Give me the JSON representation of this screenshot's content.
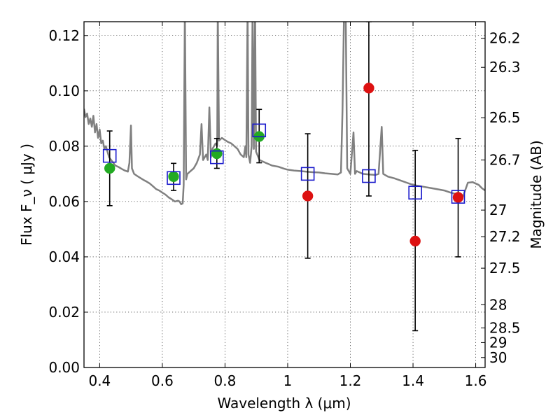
{
  "chart_data": {
    "type": "scatter",
    "xlabel": "Wavelength  λ (μm)",
    "ylabel": "Flux  F_ν  ( μJy )",
    "ylabel_right": "Magnitude (AB)",
    "xlim": [
      0.35,
      1.63
    ],
    "ylim": [
      0.0,
      0.125
    ],
    "grid": true,
    "x_ticks": [
      0.4,
      0.6,
      0.8,
      1.0,
      1.2,
      1.4,
      1.6
    ],
    "x_tick_labels": [
      "0.4",
      "0.6",
      "0.8",
      "1",
      "1.2",
      "1.4",
      "1.6"
    ],
    "y_ticks": [
      0.0,
      0.02,
      0.04,
      0.06,
      0.08,
      0.1,
      0.12
    ],
    "y_tick_labels": [
      "0.00",
      "0.02",
      "0.04",
      "0.06",
      "0.08",
      "0.10",
      "0.12"
    ],
    "right_ticks": [
      {
        "label": "26.2",
        "flux": 0.119
      },
      {
        "label": "26.3",
        "flux": 0.1085
      },
      {
        "label": "26.5",
        "flux": 0.0903
      },
      {
        "label": "26.7",
        "flux": 0.075
      },
      {
        "label": "27",
        "flux": 0.0569
      },
      {
        "label": "27.2",
        "flux": 0.0473
      },
      {
        "label": "27.5",
        "flux": 0.0359
      },
      {
        "label": "28",
        "flux": 0.0227
      },
      {
        "label": "28.5",
        "flux": 0.0143
      },
      {
        "label": "29",
        "flux": 0.009
      },
      {
        "label": "30",
        "flux": 0.0036
      }
    ],
    "series": [
      {
        "marker": "circle",
        "color": "#22aa22",
        "points": [
          {
            "x": 0.432,
            "y": 0.072
          },
          {
            "x": 0.636,
            "y": 0.069
          },
          {
            "x": 0.774,
            "y": 0.0773
          },
          {
            "x": 0.909,
            "y": 0.0835
          }
        ]
      },
      {
        "marker": "circle",
        "color": "#dd1111",
        "points": [
          {
            "x": 1.064,
            "y": 0.062
          },
          {
            "x": 1.259,
            "y": 0.101
          },
          {
            "x": 1.407,
            "y": 0.0457
          },
          {
            "x": 1.544,
            "y": 0.0615
          }
        ]
      },
      {
        "marker": "open-square",
        "color": "#1a1acc",
        "points": [
          {
            "x": 0.432,
            "y": 0.0765
          },
          {
            "x": 0.636,
            "y": 0.0685
          },
          {
            "x": 0.774,
            "y": 0.076
          },
          {
            "x": 0.909,
            "y": 0.0857
          },
          {
            "x": 1.064,
            "y": 0.07
          },
          {
            "x": 1.259,
            "y": 0.0692
          },
          {
            "x": 1.407,
            "y": 0.0632
          },
          {
            "x": 1.544,
            "y": 0.0617
          }
        ]
      }
    ],
    "error_bars": [
      {
        "x": 0.432,
        "lo": 0.0585,
        "hi": 0.0855
      },
      {
        "x": 0.636,
        "lo": 0.064,
        "hi": 0.0738
      },
      {
        "x": 0.774,
        "lo": 0.072,
        "hi": 0.0828
      },
      {
        "x": 0.909,
        "lo": 0.074,
        "hi": 0.0933
      },
      {
        "x": 1.064,
        "lo": 0.0395,
        "hi": 0.0845
      },
      {
        "x": 1.259,
        "lo": 0.062,
        "hi": 0.125
      },
      {
        "x": 1.407,
        "lo": 0.0133,
        "hi": 0.0785
      },
      {
        "x": 1.544,
        "lo": 0.04,
        "hi": 0.0828
      }
    ],
    "spectrum": {
      "color": "#808080",
      "points": [
        [
          0.35,
          0.0935
        ],
        [
          0.355,
          0.0905
        ],
        [
          0.36,
          0.0918
        ],
        [
          0.365,
          0.088
        ],
        [
          0.37,
          0.09
        ],
        [
          0.375,
          0.087
        ],
        [
          0.38,
          0.091
        ],
        [
          0.385,
          0.085
        ],
        [
          0.39,
          0.088
        ],
        [
          0.395,
          0.083
        ],
        [
          0.4,
          0.086
        ],
        [
          0.405,
          0.081
        ],
        [
          0.41,
          0.082
        ],
        [
          0.415,
          0.079
        ],
        [
          0.42,
          0.08
        ],
        [
          0.425,
          0.078
        ],
        [
          0.43,
          0.076
        ],
        [
          0.44,
          0.0745
        ],
        [
          0.45,
          0.073
        ],
        [
          0.46,
          0.0725
        ],
        [
          0.47,
          0.0718
        ],
        [
          0.48,
          0.0712
        ],
        [
          0.49,
          0.0708
        ],
        [
          0.495,
          0.074
        ],
        [
          0.5,
          0.0875
        ],
        [
          0.503,
          0.072
        ],
        [
          0.51,
          0.07
        ],
        [
          0.52,
          0.0692
        ],
        [
          0.53,
          0.0685
        ],
        [
          0.54,
          0.0678
        ],
        [
          0.55,
          0.0672
        ],
        [
          0.56,
          0.0665
        ],
        [
          0.57,
          0.0655
        ],
        [
          0.58,
          0.0645
        ],
        [
          0.59,
          0.064
        ],
        [
          0.6,
          0.0632
        ],
        [
          0.61,
          0.0625
        ],
        [
          0.62,
          0.0615
        ],
        [
          0.63,
          0.0608
        ],
        [
          0.64,
          0.06
        ],
        [
          0.65,
          0.0603
        ],
        [
          0.655,
          0.06
        ],
        [
          0.66,
          0.059
        ],
        [
          0.665,
          0.0593
        ],
        [
          0.668,
          0.066
        ],
        [
          0.672,
          0.13
        ],
        [
          0.676,
          0.068
        ],
        [
          0.68,
          0.07
        ],
        [
          0.69,
          0.071
        ],
        [
          0.7,
          0.072
        ],
        [
          0.71,
          0.074
        ],
        [
          0.72,
          0.077
        ],
        [
          0.725,
          0.088
        ],
        [
          0.73,
          0.075
        ],
        [
          0.74,
          0.077
        ],
        [
          0.745,
          0.075
        ],
        [
          0.75,
          0.094
        ],
        [
          0.755,
          0.076
        ],
        [
          0.76,
          0.079
        ],
        [
          0.77,
          0.081
        ],
        [
          0.775,
          0.08
        ],
        [
          0.777,
          0.13
        ],
        [
          0.781,
          0.082
        ],
        [
          0.79,
          0.083
        ],
        [
          0.8,
          0.0822
        ],
        [
          0.81,
          0.0815
        ],
        [
          0.82,
          0.081
        ],
        [
          0.83,
          0.08
        ],
        [
          0.84,
          0.079
        ],
        [
          0.85,
          0.077
        ],
        [
          0.86,
          0.076
        ],
        [
          0.865,
          0.08
        ],
        [
          0.868,
          0.076
        ],
        [
          0.872,
          0.13
        ],
        [
          0.875,
          0.077
        ],
        [
          0.88,
          0.074
        ],
        [
          0.885,
          0.08
        ],
        [
          0.888,
          0.13
        ],
        [
          0.892,
          0.079
        ],
        [
          0.896,
          0.13
        ],
        [
          0.899,
          0.078
        ],
        [
          0.91,
          0.075
        ],
        [
          0.92,
          0.0745
        ],
        [
          0.93,
          0.074
        ],
        [
          0.94,
          0.0735
        ],
        [
          0.95,
          0.073
        ],
        [
          0.96,
          0.0728
        ],
        [
          0.97,
          0.0726
        ],
        [
          0.98,
          0.0722
        ],
        [
          0.99,
          0.0718
        ],
        [
          1.0,
          0.0715
        ],
        [
          1.02,
          0.0712
        ],
        [
          1.04,
          0.071
        ],
        [
          1.06,
          0.0708
        ],
        [
          1.08,
          0.0706
        ],
        [
          1.1,
          0.0705
        ],
        [
          1.12,
          0.0702
        ],
        [
          1.14,
          0.07
        ],
        [
          1.16,
          0.0698
        ],
        [
          1.17,
          0.0705
        ],
        [
          1.175,
          0.093
        ],
        [
          1.18,
          0.13
        ],
        [
          1.185,
          0.13
        ],
        [
          1.19,
          0.072
        ],
        [
          1.2,
          0.07
        ],
        [
          1.21,
          0.085
        ],
        [
          1.215,
          0.07
        ],
        [
          1.22,
          0.071
        ],
        [
          1.24,
          0.07
        ],
        [
          1.26,
          0.0698
        ],
        [
          1.28,
          0.0696
        ],
        [
          1.29,
          0.07
        ],
        [
          1.3,
          0.087
        ],
        [
          1.305,
          0.07
        ],
        [
          1.32,
          0.069
        ],
        [
          1.34,
          0.0684
        ],
        [
          1.36,
          0.0676
        ],
        [
          1.38,
          0.0668
        ],
        [
          1.4,
          0.066
        ],
        [
          1.42,
          0.0656
        ],
        [
          1.44,
          0.0652
        ],
        [
          1.46,
          0.0648
        ],
        [
          1.48,
          0.0644
        ],
        [
          1.5,
          0.064
        ],
        [
          1.52,
          0.0632
        ],
        [
          1.54,
          0.0626
        ],
        [
          1.56,
          0.062
        ],
        [
          1.575,
          0.0668
        ],
        [
          1.59,
          0.067
        ],
        [
          1.6,
          0.0665
        ],
        [
          1.61,
          0.066
        ],
        [
          1.62,
          0.0648
        ],
        [
          1.63,
          0.064
        ]
      ]
    }
  }
}
